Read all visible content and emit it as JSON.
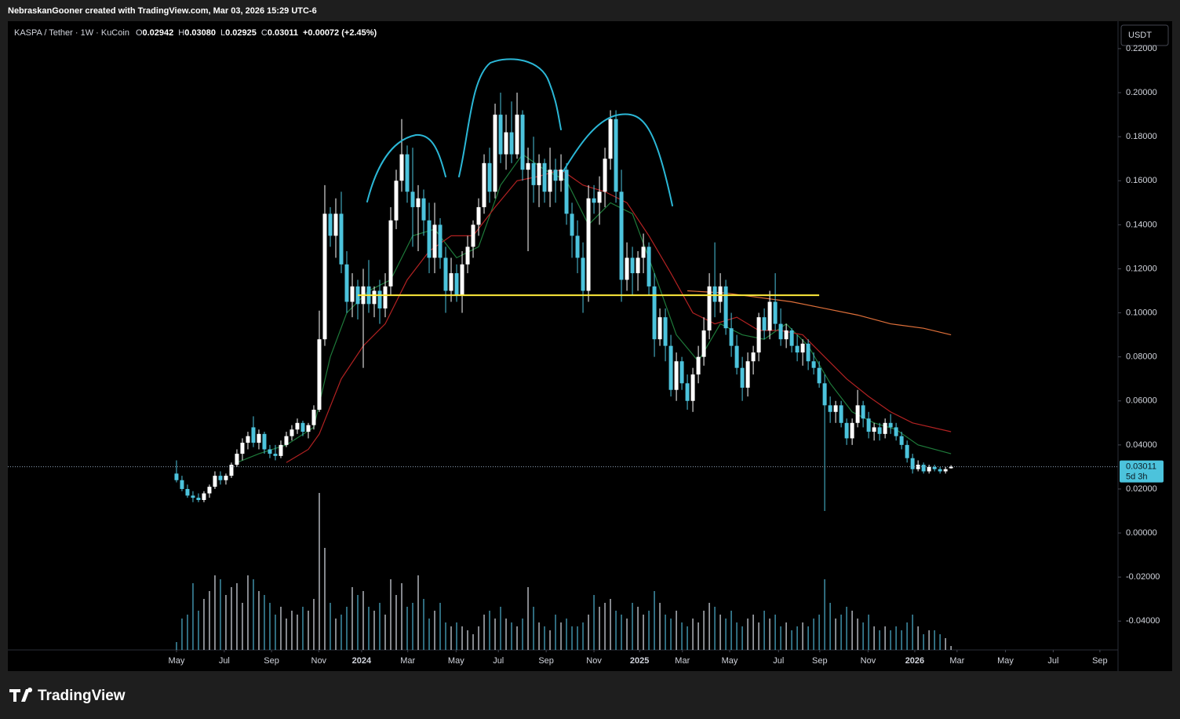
{
  "chart_data": {
    "type": "candlestick",
    "attribution": "NebraskanGooner created with TradingView.com, Mar 03, 2026 15:29 UTC-6",
    "symbol": "KASPA / Tether · 1W · KuCoin",
    "ohlc_labels": [
      "O",
      "H",
      "L",
      "C"
    ],
    "legend_values": [
      "0.02942",
      "0.03080",
      "0.02925",
      "0.03011"
    ],
    "change": "+0.00072 (+2.45%)",
    "currency_button": "USDT",
    "countdown": "5d 3h",
    "brand": "TradingView",
    "up_color": "#ffffff",
    "down_color": "#4cc3dc",
    "grid": false,
    "xlim": [
      -30.7,
      171.4
    ],
    "ylim": [
      -0.0531,
      0.2321
    ],
    "xticks": [
      {
        "value": 0,
        "label": "May"
      },
      {
        "value": 8.7,
        "label": "Jul"
      },
      {
        "value": 17.3,
        "label": "Sep"
      },
      {
        "value": 25.9,
        "label": "Nov"
      },
      {
        "value": 33.7,
        "label": "2024"
      },
      {
        "value": 42.1,
        "label": "Mar"
      },
      {
        "value": 50.9,
        "label": "May"
      },
      {
        "value": 58.6,
        "label": "Jul"
      },
      {
        "value": 67.3,
        "label": "Sep"
      },
      {
        "value": 76.0,
        "label": "Nov"
      },
      {
        "value": 84.3,
        "label": "2025"
      },
      {
        "value": 92.1,
        "label": "Mar"
      },
      {
        "value": 100.7,
        "label": "May"
      },
      {
        "value": 109.6,
        "label": "Jul"
      },
      {
        "value": 117.1,
        "label": "Sep"
      },
      {
        "value": 125.9,
        "label": "Nov"
      },
      {
        "value": 134.4,
        "label": "2026"
      },
      {
        "value": 142.1,
        "label": "Mar"
      },
      {
        "value": 150.9,
        "label": "May"
      },
      {
        "value": 159.6,
        "label": "Jul"
      },
      {
        "value": 168.1,
        "label": "Sep"
      }
    ],
    "yticks": [
      {
        "value": 0.22,
        "label": "0.22000"
      },
      {
        "value": 0.2,
        "label": "0.20000"
      },
      {
        "value": 0.18,
        "label": "0.18000"
      },
      {
        "value": 0.16,
        "label": "0.16000"
      },
      {
        "value": 0.14,
        "label": "0.14000"
      },
      {
        "value": 0.12,
        "label": "0.12000"
      },
      {
        "value": 0.1,
        "label": "0.10000"
      },
      {
        "value": 0.08,
        "label": "0.08000"
      },
      {
        "value": 0.06,
        "label": "0.06000"
      },
      {
        "value": 0.04,
        "label": "0.04000"
      },
      {
        "value": 0.02,
        "label": "0.02000"
      },
      {
        "value": 0,
        "label": "0.00000"
      },
      {
        "value": -0.02,
        "label": "-0.02000"
      },
      {
        "value": -0.04,
        "label": "-0.04000"
      }
    ],
    "x": [
      0,
      1,
      2,
      3,
      4,
      5,
      6,
      7,
      8,
      9,
      10,
      11,
      12,
      13,
      14,
      15,
      16,
      17,
      18,
      19,
      20,
      21,
      22,
      23,
      24,
      25,
      26,
      27,
      28,
      29,
      30,
      31,
      32,
      33,
      34,
      35,
      36,
      37,
      38,
      39,
      40,
      41,
      42,
      43,
      44,
      45,
      46,
      47,
      48,
      49,
      50,
      51,
      52,
      53,
      54,
      55,
      56,
      57,
      58,
      59,
      60,
      61,
      62,
      63,
      64,
      65,
      66,
      67,
      68,
      69,
      70,
      71,
      72,
      73,
      74,
      75,
      76,
      77,
      78,
      79,
      80,
      81,
      82,
      83,
      84,
      85,
      86,
      87,
      88,
      89,
      90,
      91,
      92,
      93,
      94,
      95,
      96,
      97,
      98,
      99,
      100,
      101,
      102,
      103,
      104,
      105,
      106,
      107,
      108,
      109,
      110,
      111,
      112,
      113,
      114,
      115,
      116,
      117,
      118,
      119,
      120,
      121,
      122,
      123,
      124,
      125,
      126,
      127,
      128,
      129,
      130,
      131,
      132,
      133,
      134,
      135,
      136,
      137,
      138,
      139,
      140,
      141
    ],
    "ohlc": [
      [
        0.027,
        0.033,
        0.023,
        0.024
      ],
      [
        0.024,
        0.026,
        0.019,
        0.02
      ],
      [
        0.02,
        0.022,
        0.016,
        0.017
      ],
      [
        0.017,
        0.019,
        0.014,
        0.016
      ],
      [
        0.016,
        0.018,
        0.014,
        0.015
      ],
      [
        0.015,
        0.019,
        0.014,
        0.018
      ],
      [
        0.018,
        0.022,
        0.016,
        0.021
      ],
      [
        0.021,
        0.028,
        0.02,
        0.026
      ],
      [
        0.026,
        0.028,
        0.022,
        0.024
      ],
      [
        0.024,
        0.027,
        0.022,
        0.026
      ],
      [
        0.026,
        0.032,
        0.025,
        0.031
      ],
      [
        0.031,
        0.038,
        0.03,
        0.036
      ],
      [
        0.036,
        0.043,
        0.033,
        0.041
      ],
      [
        0.041,
        0.046,
        0.038,
        0.044
      ],
      [
        0.048,
        0.053,
        0.039,
        0.041
      ],
      [
        0.041,
        0.047,
        0.038,
        0.045
      ],
      [
        0.045,
        0.046,
        0.036,
        0.038
      ],
      [
        0.038,
        0.04,
        0.034,
        0.036
      ],
      [
        0.036,
        0.04,
        0.033,
        0.035
      ],
      [
        0.035,
        0.042,
        0.034,
        0.04
      ],
      [
        0.04,
        0.046,
        0.039,
        0.044
      ],
      [
        0.044,
        0.049,
        0.042,
        0.047
      ],
      [
        0.047,
        0.052,
        0.045,
        0.05
      ],
      [
        0.05,
        0.051,
        0.044,
        0.046
      ],
      [
        0.046,
        0.05,
        0.043,
        0.049
      ],
      [
        0.049,
        0.058,
        0.047,
        0.056
      ],
      [
        0.056,
        0.101,
        0.055,
        0.088
      ],
      [
        0.088,
        0.158,
        0.085,
        0.145
      ],
      [
        0.145,
        0.148,
        0.13,
        0.135
      ],
      [
        0.135,
        0.152,
        0.125,
        0.145
      ],
      [
        0.145,
        0.155,
        0.118,
        0.122
      ],
      [
        0.122,
        0.128,
        0.1,
        0.105
      ],
      [
        0.105,
        0.118,
        0.098,
        0.112
      ],
      [
        0.112,
        0.115,
        0.097,
        0.104
      ],
      [
        0.104,
        0.12,
        0.075,
        0.112
      ],
      [
        0.112,
        0.124,
        0.1,
        0.104
      ],
      [
        0.104,
        0.112,
        0.098,
        0.11
      ],
      [
        0.11,
        0.115,
        0.095,
        0.102
      ],
      [
        0.102,
        0.118,
        0.098,
        0.112
      ],
      [
        0.112,
        0.148,
        0.108,
        0.142
      ],
      [
        0.142,
        0.165,
        0.138,
        0.16
      ],
      [
        0.16,
        0.188,
        0.155,
        0.172
      ],
      [
        0.172,
        0.176,
        0.15,
        0.155
      ],
      [
        0.155,
        0.175,
        0.13,
        0.148
      ],
      [
        0.148,
        0.158,
        0.128,
        0.152
      ],
      [
        0.152,
        0.156,
        0.135,
        0.142
      ],
      [
        0.142,
        0.15,
        0.118,
        0.125
      ],
      [
        0.125,
        0.15,
        0.118,
        0.14
      ],
      [
        0.14,
        0.143,
        0.12,
        0.125
      ],
      [
        0.125,
        0.13,
        0.1,
        0.11
      ],
      [
        0.11,
        0.125,
        0.105,
        0.118
      ],
      [
        0.118,
        0.122,
        0.105,
        0.108
      ],
      [
        0.108,
        0.128,
        0.1,
        0.122
      ],
      [
        0.122,
        0.135,
        0.118,
        0.13
      ],
      [
        0.13,
        0.142,
        0.125,
        0.14
      ],
      [
        0.14,
        0.152,
        0.135,
        0.148
      ],
      [
        0.148,
        0.172,
        0.145,
        0.168
      ],
      [
        0.168,
        0.175,
        0.15,
        0.155
      ],
      [
        0.155,
        0.195,
        0.152,
        0.19
      ],
      [
        0.19,
        0.2,
        0.168,
        0.172
      ],
      [
        0.172,
        0.19,
        0.165,
        0.182
      ],
      [
        0.182,
        0.196,
        0.168,
        0.172
      ],
      [
        0.172,
        0.2,
        0.17,
        0.19
      ],
      [
        0.19,
        0.192,
        0.16,
        0.165
      ],
      [
        0.165,
        0.175,
        0.128,
        0.168
      ],
      [
        0.168,
        0.18,
        0.15,
        0.158
      ],
      [
        0.158,
        0.172,
        0.148,
        0.168
      ],
      [
        0.168,
        0.17,
        0.15,
        0.155
      ],
      [
        0.155,
        0.175,
        0.148,
        0.165
      ],
      [
        0.165,
        0.17,
        0.15,
        0.16
      ],
      [
        0.16,
        0.172,
        0.155,
        0.165
      ],
      [
        0.165,
        0.168,
        0.14,
        0.145
      ],
      [
        0.145,
        0.15,
        0.125,
        0.135
      ],
      [
        0.135,
        0.142,
        0.118,
        0.125
      ],
      [
        0.125,
        0.132,
        0.1,
        0.11
      ],
      [
        0.11,
        0.158,
        0.105,
        0.152
      ],
      [
        0.152,
        0.158,
        0.145,
        0.15
      ],
      [
        0.15,
        0.162,
        0.14,
        0.155
      ],
      [
        0.155,
        0.175,
        0.148,
        0.17
      ],
      [
        0.17,
        0.192,
        0.165,
        0.188
      ],
      [
        0.188,
        0.192,
        0.15,
        0.155
      ],
      [
        0.155,
        0.165,
        0.105,
        0.115
      ],
      [
        0.115,
        0.132,
        0.11,
        0.125
      ],
      [
        0.125,
        0.13,
        0.108,
        0.118
      ],
      [
        0.118,
        0.128,
        0.11,
        0.125
      ],
      [
        0.125,
        0.136,
        0.118,
        0.13
      ],
      [
        0.13,
        0.132,
        0.108,
        0.112
      ],
      [
        0.112,
        0.118,
        0.08,
        0.088
      ],
      [
        0.088,
        0.102,
        0.085,
        0.098
      ],
      [
        0.098,
        0.102,
        0.078,
        0.085
      ],
      [
        0.085,
        0.09,
        0.062,
        0.065
      ],
      [
        0.065,
        0.082,
        0.06,
        0.078
      ],
      [
        0.078,
        0.08,
        0.065,
        0.068
      ],
      [
        0.068,
        0.072,
        0.056,
        0.06
      ],
      [
        0.06,
        0.075,
        0.055,
        0.072
      ],
      [
        0.072,
        0.085,
        0.068,
        0.08
      ],
      [
        0.08,
        0.098,
        0.076,
        0.092
      ],
      [
        0.092,
        0.118,
        0.088,
        0.112
      ],
      [
        0.112,
        0.132,
        0.098,
        0.105
      ],
      [
        0.105,
        0.118,
        0.1,
        0.112
      ],
      [
        0.112,
        0.115,
        0.09,
        0.093
      ],
      [
        0.093,
        0.1,
        0.08,
        0.085
      ],
      [
        0.085,
        0.09,
        0.072,
        0.075
      ],
      [
        0.075,
        0.08,
        0.06,
        0.066
      ],
      [
        0.066,
        0.082,
        0.062,
        0.078
      ],
      [
        0.078,
        0.085,
        0.072,
        0.082
      ],
      [
        0.082,
        0.1,
        0.078,
        0.098
      ],
      [
        0.098,
        0.102,
        0.088,
        0.092
      ],
      [
        0.092,
        0.11,
        0.088,
        0.105
      ],
      [
        0.105,
        0.118,
        0.092,
        0.095
      ],
      [
        0.095,
        0.102,
        0.085,
        0.088
      ],
      [
        0.088,
        0.095,
        0.084,
        0.092
      ],
      [
        0.092,
        0.093,
        0.082,
        0.085
      ],
      [
        0.085,
        0.09,
        0.078,
        0.082
      ],
      [
        0.082,
        0.088,
        0.076,
        0.086
      ],
      [
        0.086,
        0.088,
        0.074,
        0.078
      ],
      [
        0.078,
        0.082,
        0.072,
        0.075
      ],
      [
        0.075,
        0.078,
        0.066,
        0.068
      ],
      [
        0.068,
        0.072,
        0.01,
        0.058
      ],
      [
        0.058,
        0.062,
        0.05,
        0.055
      ],
      [
        0.055,
        0.06,
        0.05,
        0.058
      ],
      [
        0.058,
        0.06,
        0.048,
        0.05
      ],
      [
        0.05,
        0.052,
        0.04,
        0.043
      ],
      [
        0.043,
        0.052,
        0.04,
        0.05
      ],
      [
        0.05,
        0.065,
        0.048,
        0.058
      ],
      [
        0.058,
        0.06,
        0.048,
        0.052
      ],
      [
        0.052,
        0.055,
        0.043,
        0.046
      ],
      [
        0.046,
        0.05,
        0.042,
        0.048
      ],
      [
        0.048,
        0.05,
        0.042,
        0.045
      ],
      [
        0.045,
        0.052,
        0.043,
        0.05
      ],
      [
        0.05,
        0.054,
        0.045,
        0.048
      ],
      [
        0.048,
        0.05,
        0.042,
        0.044
      ],
      [
        0.044,
        0.046,
        0.038,
        0.04
      ],
      [
        0.04,
        0.042,
        0.032,
        0.034
      ],
      [
        0.034,
        0.036,
        0.027,
        0.029
      ],
      [
        0.029,
        0.033,
        0.028,
        0.031
      ],
      [
        0.031,
        0.032,
        0.027,
        0.028
      ],
      [
        0.028,
        0.031,
        0.027,
        0.03
      ],
      [
        0.03,
        0.031,
        0.028,
        0.029
      ],
      [
        0.029,
        0.03,
        0.027,
        0.028
      ],
      [
        0.028,
        0.03,
        0.027,
        0.029
      ],
      [
        0.02942,
        0.0308,
        0.02925,
        0.03011
      ]
    ],
    "volume": [
      10,
      40,
      45,
      85,
      50,
      65,
      75,
      95,
      90,
      70,
      80,
      85,
      60,
      95,
      90,
      75,
      70,
      60,
      45,
      55,
      40,
      50,
      45,
      55,
      50,
      65,
      200,
      130,
      60,
      40,
      45,
      55,
      80,
      70,
      75,
      55,
      50,
      60,
      45,
      90,
      70,
      85,
      55,
      60,
      95,
      65,
      40,
      50,
      60,
      35,
      30,
      35,
      30,
      25,
      20,
      30,
      45,
      50,
      40,
      55,
      40,
      35,
      30,
      40,
      80,
      55,
      35,
      30,
      25,
      45,
      35,
      40,
      30,
      30,
      35,
      45,
      70,
      55,
      60,
      65,
      50,
      45,
      40,
      60,
      55,
      45,
      50,
      75,
      60,
      45,
      40,
      50,
      35,
      30,
      40,
      35,
      50,
      60,
      55,
      45,
      40,
      50,
      35,
      30,
      40,
      45,
      35,
      50,
      40,
      45,
      30,
      35,
      25,
      30,
      35,
      30,
      40,
      45,
      90,
      60,
      40,
      45,
      55,
      50,
      40,
      35,
      45,
      30,
      25,
      30,
      25,
      30,
      25,
      35,
      45,
      30,
      20,
      25,
      25,
      20,
      15,
      5
    ],
    "overlays": [
      {
        "color": "#1e7a3a",
        "x": [
          11,
          15,
          20,
          25,
          28,
          31,
          35,
          39,
          43,
          47,
          51,
          55,
          59,
          63,
          67,
          71,
          75,
          79,
          83,
          87,
          91,
          95,
          99,
          103,
          107,
          111,
          115,
          119,
          123,
          127,
          131,
          135,
          141
        ],
        "values": [
          0.032,
          0.036,
          0.04,
          0.048,
          0.08,
          0.1,
          0.11,
          0.115,
          0.135,
          0.138,
          0.125,
          0.13,
          0.158,
          0.172,
          0.165,
          0.16,
          0.14,
          0.15,
          0.145,
          0.118,
          0.09,
          0.078,
          0.095,
          0.09,
          0.088,
          0.095,
          0.085,
          0.068,
          0.055,
          0.05,
          0.047,
          0.04,
          0.036
        ]
      },
      {
        "color": "#b22222",
        "x": [
          20,
          24,
          26,
          30,
          34,
          38,
          42,
          46,
          50,
          54,
          58,
          62,
          66,
          70,
          74,
          78,
          82,
          86,
          90,
          94,
          98,
          102,
          106,
          110,
          114,
          118,
          122,
          126,
          130,
          134,
          141
        ],
        "values": [
          0.032,
          0.038,
          0.045,
          0.07,
          0.085,
          0.095,
          0.115,
          0.128,
          0.135,
          0.135,
          0.148,
          0.16,
          0.162,
          0.165,
          0.158,
          0.155,
          0.15,
          0.135,
          0.118,
          0.1,
          0.095,
          0.098,
          0.092,
          0.092,
          0.09,
          0.08,
          0.07,
          0.062,
          0.055,
          0.05,
          0.046
        ]
      },
      {
        "color": "#e0703a",
        "x": [
          93,
          100,
          106,
          112,
          118,
          124,
          130,
          136,
          141
        ],
        "values": [
          0.11,
          0.109,
          0.107,
          0.105,
          0.102,
          0.099,
          0.095,
          0.093,
          0.09
        ]
      }
    ],
    "support_line": {
      "value": 0.108,
      "x": [
        33,
        117
      ],
      "color": "#ffeb3b"
    }
  }
}
